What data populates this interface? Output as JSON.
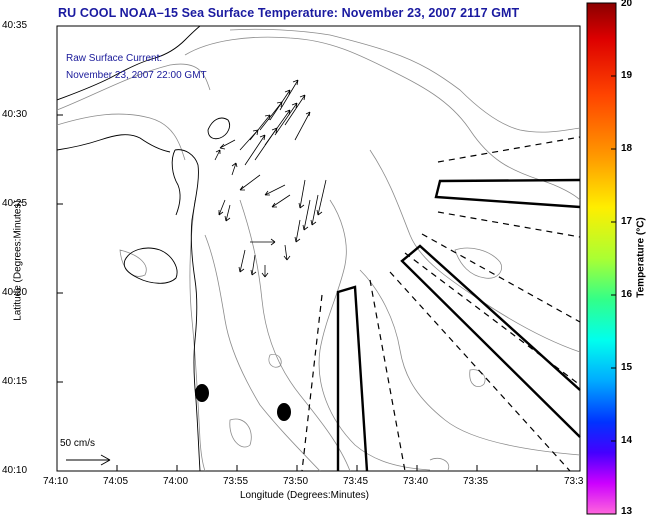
{
  "title": "RU COOL  NOAA–15  Sea Surface Temperature:  November 23, 2007 2117 GMT",
  "current_annotation": {
    "line1": "Raw Surface Current:",
    "line2": "November 23, 2007 22:00 GMT"
  },
  "x_axis": {
    "label": "Longitude (Degrees:Minutes)",
    "ticks": [
      "74:10",
      "74:05",
      "74:00",
      "73:55",
      "73:50",
      "73:45",
      "73:40",
      "73:35",
      "73:3"
    ]
  },
  "y_axis": {
    "label": "Latitude (Degrees:Minutes)",
    "ticks": [
      "40:35",
      "40:30",
      "40:25",
      "40:20",
      "40:15",
      "40:10"
    ]
  },
  "colorbar": {
    "label": "Temperature (°C)",
    "ticks": [
      "20",
      "19",
      "18",
      "17",
      "16",
      "15",
      "14",
      "13"
    ],
    "min": 13,
    "max": 20
  },
  "scale_bar": {
    "label": "50 cm/s"
  },
  "colors": {
    "title": "#1a1aa0",
    "annotation": "#1a1a9a",
    "contour": "#8c8c8c",
    "coast": "#000000"
  }
}
